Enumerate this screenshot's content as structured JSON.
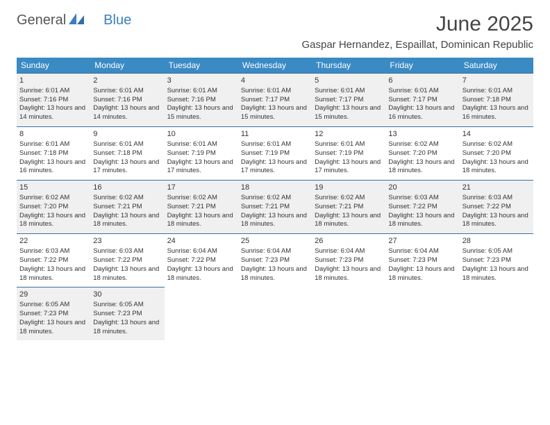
{
  "brand": {
    "name1": "General",
    "name2": "Blue"
  },
  "title": "June 2025",
  "subtitle": "Gaspar Hernandez, Espaillat, Dominican Republic",
  "colors": {
    "header_bg": "#3a8ac4",
    "header_text": "#ffffff",
    "cell_border": "#3a6f9f",
    "alt_row_bg": "#f0f0f0",
    "page_bg": "#ffffff",
    "text": "#333333",
    "brand_blue": "#3a7fbf"
  },
  "weekdays": [
    "Sunday",
    "Monday",
    "Tuesday",
    "Wednesday",
    "Thursday",
    "Friday",
    "Saturday"
  ],
  "weeks": [
    [
      {
        "n": "1",
        "sr": "Sunrise: 6:01 AM",
        "ss": "Sunset: 7:16 PM",
        "dl": "Daylight: 13 hours and 14 minutes."
      },
      {
        "n": "2",
        "sr": "Sunrise: 6:01 AM",
        "ss": "Sunset: 7:16 PM",
        "dl": "Daylight: 13 hours and 14 minutes."
      },
      {
        "n": "3",
        "sr": "Sunrise: 6:01 AM",
        "ss": "Sunset: 7:16 PM",
        "dl": "Daylight: 13 hours and 15 minutes."
      },
      {
        "n": "4",
        "sr": "Sunrise: 6:01 AM",
        "ss": "Sunset: 7:17 PM",
        "dl": "Daylight: 13 hours and 15 minutes."
      },
      {
        "n": "5",
        "sr": "Sunrise: 6:01 AM",
        "ss": "Sunset: 7:17 PM",
        "dl": "Daylight: 13 hours and 15 minutes."
      },
      {
        "n": "6",
        "sr": "Sunrise: 6:01 AM",
        "ss": "Sunset: 7:17 PM",
        "dl": "Daylight: 13 hours and 16 minutes."
      },
      {
        "n": "7",
        "sr": "Sunrise: 6:01 AM",
        "ss": "Sunset: 7:18 PM",
        "dl": "Daylight: 13 hours and 16 minutes."
      }
    ],
    [
      {
        "n": "8",
        "sr": "Sunrise: 6:01 AM",
        "ss": "Sunset: 7:18 PM",
        "dl": "Daylight: 13 hours and 16 minutes."
      },
      {
        "n": "9",
        "sr": "Sunrise: 6:01 AM",
        "ss": "Sunset: 7:18 PM",
        "dl": "Daylight: 13 hours and 17 minutes."
      },
      {
        "n": "10",
        "sr": "Sunrise: 6:01 AM",
        "ss": "Sunset: 7:19 PM",
        "dl": "Daylight: 13 hours and 17 minutes."
      },
      {
        "n": "11",
        "sr": "Sunrise: 6:01 AM",
        "ss": "Sunset: 7:19 PM",
        "dl": "Daylight: 13 hours and 17 minutes."
      },
      {
        "n": "12",
        "sr": "Sunrise: 6:01 AM",
        "ss": "Sunset: 7:19 PM",
        "dl": "Daylight: 13 hours and 17 minutes."
      },
      {
        "n": "13",
        "sr": "Sunrise: 6:02 AM",
        "ss": "Sunset: 7:20 PM",
        "dl": "Daylight: 13 hours and 18 minutes."
      },
      {
        "n": "14",
        "sr": "Sunrise: 6:02 AM",
        "ss": "Sunset: 7:20 PM",
        "dl": "Daylight: 13 hours and 18 minutes."
      }
    ],
    [
      {
        "n": "15",
        "sr": "Sunrise: 6:02 AM",
        "ss": "Sunset: 7:20 PM",
        "dl": "Daylight: 13 hours and 18 minutes."
      },
      {
        "n": "16",
        "sr": "Sunrise: 6:02 AM",
        "ss": "Sunset: 7:21 PM",
        "dl": "Daylight: 13 hours and 18 minutes."
      },
      {
        "n": "17",
        "sr": "Sunrise: 6:02 AM",
        "ss": "Sunset: 7:21 PM",
        "dl": "Daylight: 13 hours and 18 minutes."
      },
      {
        "n": "18",
        "sr": "Sunrise: 6:02 AM",
        "ss": "Sunset: 7:21 PM",
        "dl": "Daylight: 13 hours and 18 minutes."
      },
      {
        "n": "19",
        "sr": "Sunrise: 6:02 AM",
        "ss": "Sunset: 7:21 PM",
        "dl": "Daylight: 13 hours and 18 minutes."
      },
      {
        "n": "20",
        "sr": "Sunrise: 6:03 AM",
        "ss": "Sunset: 7:22 PM",
        "dl": "Daylight: 13 hours and 18 minutes."
      },
      {
        "n": "21",
        "sr": "Sunrise: 6:03 AM",
        "ss": "Sunset: 7:22 PM",
        "dl": "Daylight: 13 hours and 18 minutes."
      }
    ],
    [
      {
        "n": "22",
        "sr": "Sunrise: 6:03 AM",
        "ss": "Sunset: 7:22 PM",
        "dl": "Daylight: 13 hours and 18 minutes."
      },
      {
        "n": "23",
        "sr": "Sunrise: 6:03 AM",
        "ss": "Sunset: 7:22 PM",
        "dl": "Daylight: 13 hours and 18 minutes."
      },
      {
        "n": "24",
        "sr": "Sunrise: 6:04 AM",
        "ss": "Sunset: 7:22 PM",
        "dl": "Daylight: 13 hours and 18 minutes."
      },
      {
        "n": "25",
        "sr": "Sunrise: 6:04 AM",
        "ss": "Sunset: 7:23 PM",
        "dl": "Daylight: 13 hours and 18 minutes."
      },
      {
        "n": "26",
        "sr": "Sunrise: 6:04 AM",
        "ss": "Sunset: 7:23 PM",
        "dl": "Daylight: 13 hours and 18 minutes."
      },
      {
        "n": "27",
        "sr": "Sunrise: 6:04 AM",
        "ss": "Sunset: 7:23 PM",
        "dl": "Daylight: 13 hours and 18 minutes."
      },
      {
        "n": "28",
        "sr": "Sunrise: 6:05 AM",
        "ss": "Sunset: 7:23 PM",
        "dl": "Daylight: 13 hours and 18 minutes."
      }
    ],
    [
      {
        "n": "29",
        "sr": "Sunrise: 6:05 AM",
        "ss": "Sunset: 7:23 PM",
        "dl": "Daylight: 13 hours and 18 minutes."
      },
      {
        "n": "30",
        "sr": "Sunrise: 6:05 AM",
        "ss": "Sunset: 7:23 PM",
        "dl": "Daylight: 13 hours and 18 minutes."
      },
      null,
      null,
      null,
      null,
      null
    ]
  ]
}
